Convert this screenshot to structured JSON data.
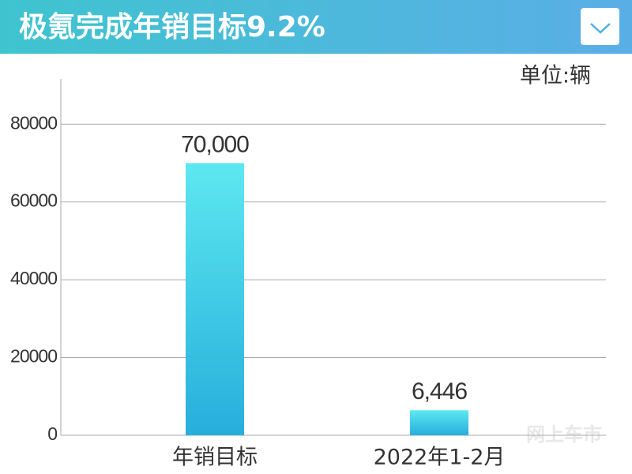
{
  "chart_data": {
    "type": "bar",
    "title": "极氪完成年销目标9.2%",
    "unit_label": "单位:辆",
    "categories": [
      "年销目标",
      "2022年1-2月"
    ],
    "values": [
      70000,
      6446
    ],
    "value_labels": [
      "70,000",
      "6,446"
    ],
    "colors": [
      "#5de8f0",
      "#27aedc"
    ],
    "ylim": [
      0,
      90000
    ],
    "yticks": [
      0,
      20000,
      40000,
      60000,
      80000
    ],
    "grid": true,
    "watermark": "网上车市"
  }
}
